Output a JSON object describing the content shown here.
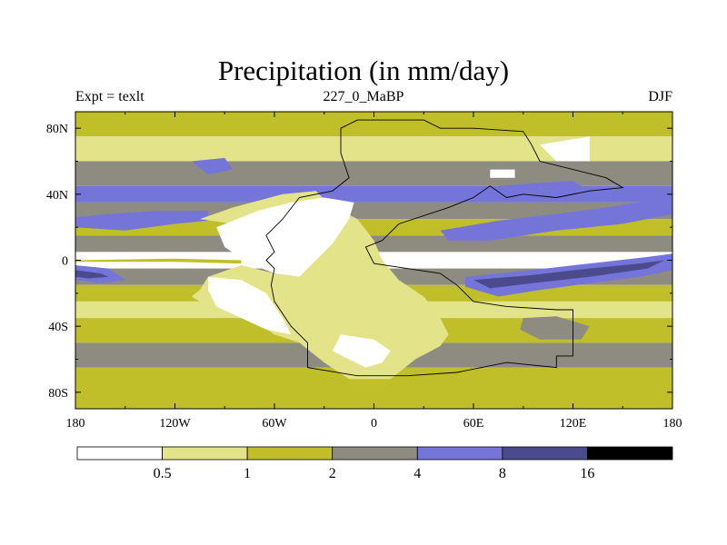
{
  "title": "Precipitation (in mm/day)",
  "subtitle_left": "Expt = texlt",
  "subtitle_center": "227_0_MaBP",
  "subtitle_right": "DJF",
  "chart_data": {
    "type": "heatmap",
    "title": "Precipitation (in mm/day)",
    "units": "mm/day",
    "experiment": "texlt",
    "age": "227_0_MaBP",
    "season": "DJF",
    "x_axis": {
      "range": [
        -180,
        180
      ],
      "ticks": [
        {
          "value": -180,
          "label": "180"
        },
        {
          "value": -120,
          "label": "120W"
        },
        {
          "value": -60,
          "label": "60W"
        },
        {
          "value": 0,
          "label": "0"
        },
        {
          "value": 60,
          "label": "60E"
        },
        {
          "value": 120,
          "label": "120E"
        },
        {
          "value": 180,
          "label": "180"
        }
      ]
    },
    "y_axis": {
      "range": [
        -90,
        90
      ],
      "ticks": [
        {
          "value": 80,
          "label": "80N"
        },
        {
          "value": 40,
          "label": "40N"
        },
        {
          "value": 0,
          "label": "0"
        },
        {
          "value": -40,
          "label": "40S"
        },
        {
          "value": -80,
          "label": "80S"
        }
      ]
    },
    "colorbar": {
      "levels": [
        "0.5",
        "1",
        "2",
        "4",
        "8",
        "16"
      ],
      "colors": [
        "#ffffff",
        "#e3e389",
        "#c0bf2a",
        "#8e8c80",
        "#7574d9",
        "#4a4a8c",
        "#000000"
      ]
    },
    "latitude_band_categories": [
      {
        "lat_range": [
          75,
          90
        ],
        "cat": 2
      },
      {
        "lat_range": [
          60,
          75
        ],
        "cat": 1
      },
      {
        "lat_range": [
          45,
          60
        ],
        "cat": 3
      },
      {
        "lat_range": [
          35,
          45
        ],
        "cat": 4
      },
      {
        "lat_range": [
          25,
          35
        ],
        "cat": 3
      },
      {
        "lat_range": [
          15,
          25
        ],
        "cat": 2
      },
      {
        "lat_range": [
          5,
          15
        ],
        "cat": 3
      },
      {
        "lat_range": [
          -5,
          5
        ],
        "cat": 0
      },
      {
        "lat_range": [
          -15,
          -5
        ],
        "cat": 3
      },
      {
        "lat_range": [
          -25,
          -15
        ],
        "cat": 2
      },
      {
        "lat_range": [
          -35,
          -25
        ],
        "cat": 1
      },
      {
        "lat_range": [
          -50,
          -35
        ],
        "cat": 2
      },
      {
        "lat_range": [
          -65,
          -50
        ],
        "cat": 3
      },
      {
        "lat_range": [
          -90,
          -65
        ],
        "cat": 2
      }
    ],
    "regions": [
      {
        "cat": 4,
        "lonlat": [
          [
            -180,
            20
          ],
          [
            -150,
            18
          ],
          [
            -120,
            22
          ],
          [
            -100,
            24
          ],
          [
            -100,
            30
          ],
          [
            -130,
            30
          ],
          [
            -160,
            28
          ],
          [
            -180,
            26
          ]
        ]
      },
      {
        "cat": 4,
        "lonlat": [
          [
            -180,
            -3
          ],
          [
            -160,
            -5
          ],
          [
            -150,
            -12
          ],
          [
            -165,
            -14
          ],
          [
            -180,
            -12
          ]
        ]
      },
      {
        "cat": 5,
        "lonlat": [
          [
            -180,
            -6
          ],
          [
            -165,
            -8
          ],
          [
            -160,
            -10
          ],
          [
            -172,
            -11
          ],
          [
            -180,
            -10
          ]
        ]
      },
      {
        "cat": 2,
        "lonlat": [
          [
            -180,
            0
          ],
          [
            -120,
            1
          ],
          [
            -80,
            0
          ],
          [
            -80,
            -2
          ],
          [
            -120,
            -1
          ],
          [
            -180,
            -1
          ]
        ]
      },
      {
        "cat": 1,
        "lonlat": [
          [
            -105,
            25
          ],
          [
            -85,
            32
          ],
          [
            -55,
            40
          ],
          [
            -35,
            42
          ],
          [
            -25,
            32
          ],
          [
            -25,
            20
          ],
          [
            -35,
            8
          ],
          [
            -40,
            0
          ],
          [
            -45,
            -10
          ],
          [
            -60,
            -8
          ],
          [
            -80,
            -3
          ],
          [
            -100,
            -10
          ],
          [
            -105,
            -18
          ],
          [
            -110,
            -22
          ],
          [
            -100,
            -28
          ],
          [
            -75,
            -35
          ],
          [
            -60,
            -45
          ],
          [
            -45,
            -50
          ],
          [
            -30,
            -62
          ],
          [
            -15,
            -72
          ],
          [
            10,
            -72
          ],
          [
            25,
            -60
          ],
          [
            40,
            -52
          ],
          [
            45,
            -45
          ],
          [
            40,
            -35
          ],
          [
            30,
            -22
          ],
          [
            15,
            -12
          ],
          [
            5,
            0
          ],
          [
            0,
            12
          ],
          [
            -10,
            25
          ],
          [
            -30,
            35
          ],
          [
            -60,
            28
          ],
          [
            -85,
            22
          ]
        ]
      },
      {
        "cat": 0,
        "lonlat": [
          [
            -95,
            20
          ],
          [
            -70,
            30
          ],
          [
            -50,
            35
          ],
          [
            -30,
            38
          ],
          [
            -12,
            35
          ],
          [
            -15,
            25
          ],
          [
            -25,
            10
          ],
          [
            -35,
            0
          ],
          [
            -45,
            -10
          ],
          [
            -60,
            -8
          ],
          [
            -75,
            -2
          ],
          [
            -90,
            8
          ]
        ]
      },
      {
        "cat": 0,
        "lonlat": [
          [
            -100,
            -10
          ],
          [
            -80,
            -12
          ],
          [
            -65,
            -20
          ],
          [
            -55,
            -35
          ],
          [
            -50,
            -45
          ],
          [
            -65,
            -42
          ],
          [
            -80,
            -35
          ],
          [
            -95,
            -28
          ],
          [
            -100,
            -18
          ]
        ]
      },
      {
        "cat": 0,
        "lonlat": [
          [
            -20,
            -45
          ],
          [
            0,
            -48
          ],
          [
            10,
            -55
          ],
          [
            5,
            -62
          ],
          [
            -5,
            -65
          ],
          [
            -15,
            -60
          ],
          [
            -25,
            -55
          ]
        ]
      },
      {
        "cat": 4,
        "lonlat": [
          [
            55,
            -10
          ],
          [
            95,
            -6
          ],
          [
            130,
            -2
          ],
          [
            165,
            2
          ],
          [
            180,
            4
          ],
          [
            180,
            -6
          ],
          [
            160,
            -10
          ],
          [
            130,
            -14
          ],
          [
            100,
            -18
          ],
          [
            75,
            -22
          ],
          [
            55,
            -16
          ]
        ]
      },
      {
        "cat": 5,
        "lonlat": [
          [
            60,
            -12
          ],
          [
            95,
            -9
          ],
          [
            130,
            -5
          ],
          [
            160,
            -2
          ],
          [
            175,
            0
          ],
          [
            165,
            -5
          ],
          [
            130,
            -10
          ],
          [
            95,
            -14
          ],
          [
            70,
            -17
          ]
        ]
      },
      {
        "cat": 4,
        "lonlat": [
          [
            40,
            18
          ],
          [
            75,
            24
          ],
          [
            110,
            28
          ],
          [
            140,
            32
          ],
          [
            160,
            35
          ],
          [
            180,
            38
          ],
          [
            180,
            28
          ],
          [
            150,
            22
          ],
          [
            110,
            18
          ],
          [
            70,
            12
          ],
          [
            45,
            12
          ]
        ]
      },
      {
        "cat": 4,
        "lonlat": [
          [
            75,
            45
          ],
          [
            100,
            47
          ],
          [
            120,
            48
          ],
          [
            130,
            42
          ],
          [
            100,
            38
          ],
          [
            80,
            40
          ]
        ]
      },
      {
        "cat": 3,
        "lonlat": [
          [
            90,
            -35
          ],
          [
            110,
            -34
          ],
          [
            130,
            -40
          ],
          [
            125,
            -48
          ],
          [
            100,
            -48
          ],
          [
            88,
            -42
          ]
        ]
      },
      {
        "cat": 4,
        "lonlat": [
          [
            -110,
            60
          ],
          [
            -90,
            62
          ],
          [
            -85,
            55
          ],
          [
            -100,
            52
          ]
        ]
      },
      {
        "cat": 0,
        "lonlat": [
          [
            100,
            70
          ],
          [
            130,
            75
          ],
          [
            130,
            60
          ],
          [
            110,
            60
          ]
        ]
      },
      {
        "cat": 0,
        "lonlat": [
          [
            70,
            55
          ],
          [
            85,
            55
          ],
          [
            85,
            50
          ],
          [
            70,
            50
          ]
        ]
      }
    ],
    "continent_outline_lonlat": [
      [
        -20,
        80
      ],
      [
        -10,
        85
      ],
      [
        30,
        85
      ],
      [
        40,
        80
      ],
      [
        60,
        80
      ],
      [
        90,
        78
      ],
      [
        95,
        70
      ],
      [
        100,
        60
      ],
      [
        140,
        50
      ],
      [
        150,
        44
      ],
      [
        130,
        42
      ],
      [
        110,
        38
      ],
      [
        90,
        40
      ],
      [
        80,
        38
      ],
      [
        70,
        45
      ],
      [
        60,
        38
      ],
      [
        45,
        32
      ],
      [
        15,
        22
      ],
      [
        5,
        12
      ],
      [
        -5,
        8
      ],
      [
        0,
        -2
      ],
      [
        20,
        -5
      ],
      [
        40,
        -8
      ],
      [
        50,
        -15
      ],
      [
        60,
        -25
      ],
      [
        80,
        -28
      ],
      [
        110,
        -30
      ],
      [
        120,
        -30
      ],
      [
        120,
        -58
      ],
      [
        110,
        -58
      ],
      [
        110,
        -65
      ],
      [
        80,
        -62
      ],
      [
        50,
        -68
      ],
      [
        20,
        -70
      ],
      [
        -10,
        -70
      ],
      [
        -40,
        -65
      ],
      [
        -40,
        -50
      ],
      [
        -50,
        -40
      ],
      [
        -60,
        -25
      ],
      [
        -62,
        -15
      ],
      [
        -60,
        -5
      ],
      [
        -65,
        0
      ],
      [
        -60,
        5
      ],
      [
        -65,
        15
      ],
      [
        -55,
        25
      ],
      [
        -45,
        38
      ],
      [
        -25,
        42
      ],
      [
        -15,
        50
      ],
      [
        -20,
        65
      ]
    ]
  }
}
